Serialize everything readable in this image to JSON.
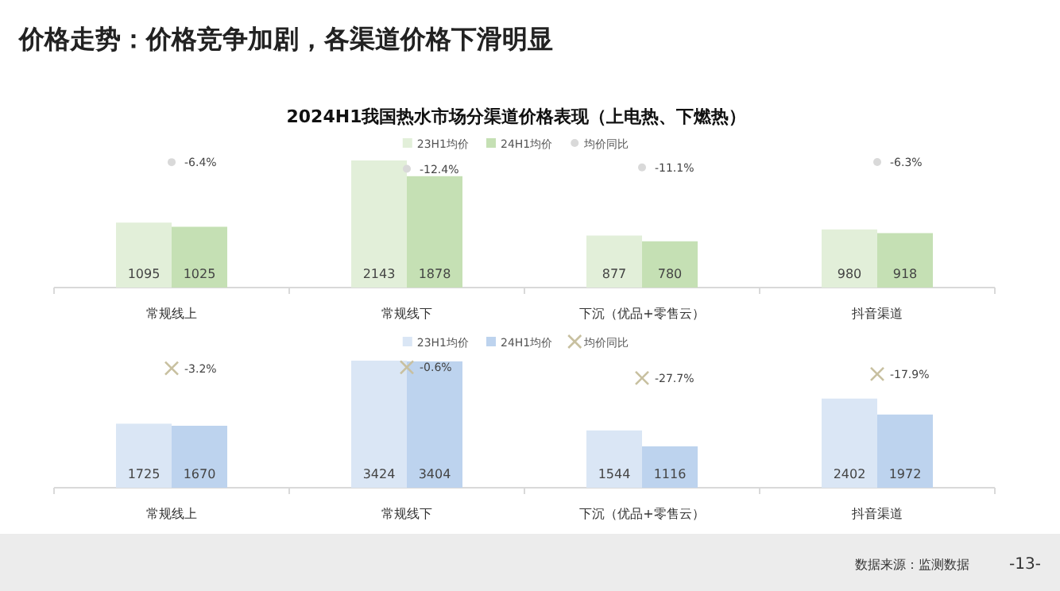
{
  "chart_data": [
    {
      "type": "bar",
      "title": "价格走势：价格竞争加剧，各渠道价格下滑明显",
      "subtitle": "2024H1我国热水市场分渠道价格表现（上电热、下燃热）",
      "categories": [
        "常规线上",
        "常规线下",
        "下沉（优品+零售云）",
        "抖音渠道"
      ],
      "legend": "top",
      "data_labels": true,
      "series": [
        {
          "name": "23H1均价",
          "color": "#e2efd9",
          "values": [
            1095,
            2143,
            877,
            980
          ]
        },
        {
          "name": "24H1均价",
          "color": "#c5e0b4",
          "values": [
            1025,
            1878,
            780,
            918
          ]
        },
        {
          "name": "均价同比",
          "type": "scatter",
          "axis": "y2",
          "marker": "circle",
          "color": "#d9d9d9",
          "values": [
            -6.4,
            -12.4,
            -11.1,
            -6.3
          ],
          "value_labels": [
            "-6.4%",
            "-12.4%",
            "-11.1%",
            "-6.3%"
          ]
        }
      ]
    },
    {
      "type": "bar",
      "categories": [
        "常规线上",
        "常规线下",
        "下沉（优品+零售云）",
        "抖音渠道"
      ],
      "legend": "top",
      "data_labels": true,
      "annotations": [
        "数据来源：监测数据",
        "-13-"
      ],
      "series": [
        {
          "name": "23H1均价",
          "color": "#dae6f5",
          "values": [
            1725,
            3424,
            1544,
            2402
          ]
        },
        {
          "name": "24H1均价",
          "color": "#bdd3ee",
          "values": [
            1670,
            3404,
            1116,
            1972
          ]
        },
        {
          "name": "均价同比",
          "type": "scatter",
          "axis": "y2",
          "marker": "cross",
          "color": "#c8c0a0",
          "values": [
            -3.2,
            -0.6,
            -27.7,
            -17.9
          ],
          "value_labels": [
            "-3.2%",
            "-0.6%",
            "-27.7%",
            "-17.9%"
          ]
        }
      ]
    }
  ]
}
